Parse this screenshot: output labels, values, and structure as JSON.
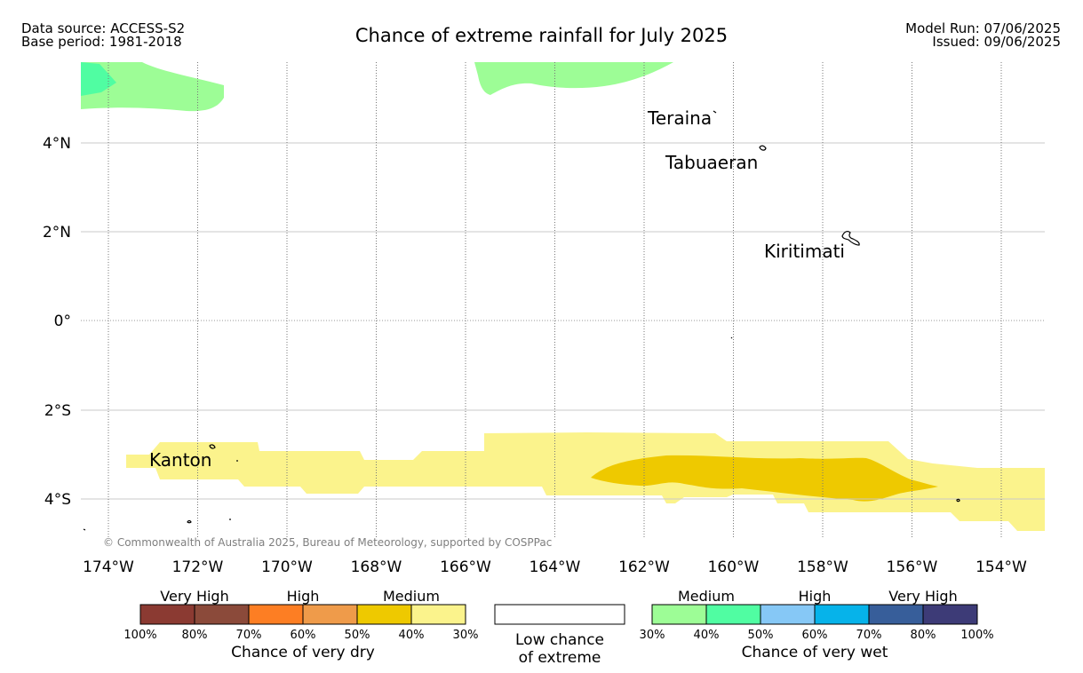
{
  "header": {
    "data_source": "Data source: ACCESS-S2",
    "base_period": "Base period: 1981-2018",
    "title": "Chance of extreme rainfall for July 2025",
    "model_run": "Model Run: 07/06/2025",
    "issued": "Issued: 09/06/2025"
  },
  "map": {
    "lat_labels": [
      "4°N",
      "2°N",
      "0°",
      "2°S",
      "4°S"
    ],
    "lon_labels": [
      "174°W",
      "172°W",
      "170°W",
      "168°W",
      "166°W",
      "164°W",
      "162°W",
      "160°W",
      "158°W",
      "156°W",
      "154°W"
    ],
    "places": [
      "Teraina",
      "Tabuaeran",
      "Kiritimati",
      "Kanton"
    ],
    "copyright": "© Commonwealth of Australia 2025, Bureau of Meteorology, supported by COSPPac"
  },
  "legend": {
    "dry": {
      "groups": [
        "Very High",
        "High",
        "Medium"
      ],
      "ticks": [
        "100%",
        "80%",
        "70%",
        "60%",
        "50%",
        "40%",
        "30%"
      ],
      "title": "Chance of very dry",
      "colors": [
        "#8b3a32",
        "#8b4a3a",
        "#fd7e23",
        "#ef9b4a",
        "#eec900",
        "#fbf38c"
      ]
    },
    "low": {
      "line1": "Low chance",
      "line2": "of extreme"
    },
    "wet": {
      "groups": [
        "Medium",
        "High",
        "Very High"
      ],
      "ticks": [
        "30%",
        "40%",
        "50%",
        "60%",
        "70%",
        "80%",
        "100%"
      ],
      "title": "Chance of very wet",
      "colors": [
        "#9dfd96",
        "#50fda2",
        "#86c8f6",
        "#06b3ea",
        "#375e9a",
        "#3d3b77"
      ]
    }
  },
  "colors": {
    "light_green": "#9dfd96",
    "green": "#50fda2",
    "light_yellow": "#fbf38c",
    "yellow": "#eec900",
    "gridline": "#bbbbbb"
  }
}
